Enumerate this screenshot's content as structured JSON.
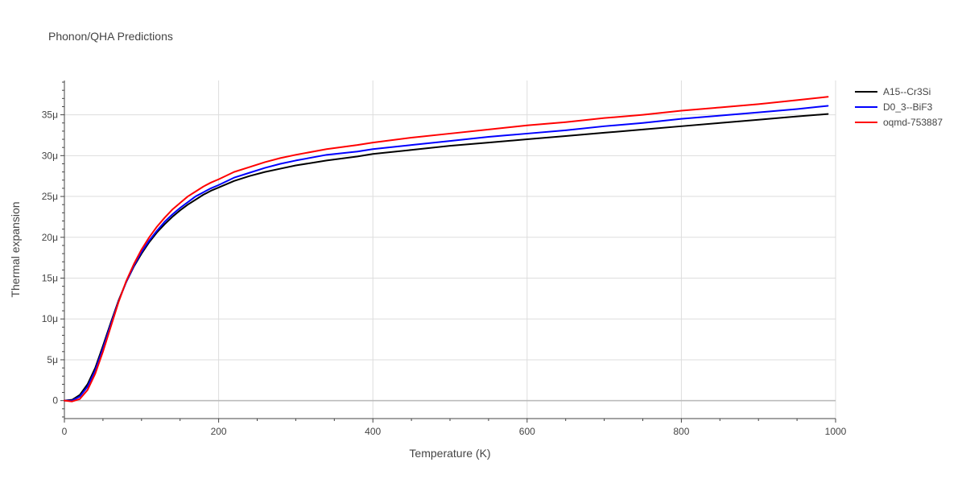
{
  "chart_data": {
    "type": "line",
    "title": "Phonon/QHA Predictions",
    "xlabel": "Temperature (K)",
    "ylabel": "Thermal expansion",
    "xlim": [
      0,
      1000
    ],
    "ylim": [
      -2.2,
      39.2
    ],
    "x_ticks": [
      0,
      200,
      400,
      600,
      800,
      1000
    ],
    "x_tick_labels": [
      "0",
      "200",
      "400",
      "600",
      "800",
      "1000"
    ],
    "y_ticks": [
      0,
      5,
      10,
      15,
      20,
      25,
      30,
      35
    ],
    "y_tick_labels": [
      "0",
      "5μ",
      "10μ",
      "15μ",
      "20μ",
      "25μ",
      "30μ",
      "35μ"
    ],
    "y_unit": "μ (×1e-6)",
    "grid": true,
    "legend_position": "top-right",
    "series": [
      {
        "name": "A15--Cr3Si",
        "color": "#000000",
        "x": [
          0,
          10,
          20,
          30,
          40,
          50,
          60,
          70,
          80,
          90,
          100,
          110,
          120,
          130,
          140,
          150,
          160,
          170,
          180,
          190,
          200,
          220,
          240,
          260,
          280,
          300,
          340,
          380,
          400,
          450,
          500,
          550,
          600,
          650,
          700,
          750,
          800,
          850,
          900,
          950,
          990
        ],
        "y": [
          0,
          0.1,
          0.7,
          2.0,
          4.0,
          6.7,
          9.5,
          12.2,
          14.5,
          16.4,
          18.0,
          19.4,
          20.6,
          21.6,
          22.5,
          23.3,
          24.0,
          24.6,
          25.2,
          25.7,
          26.1,
          26.9,
          27.5,
          28.0,
          28.4,
          28.8,
          29.4,
          29.9,
          30.2,
          30.7,
          31.2,
          31.6,
          32.0,
          32.4,
          32.8,
          33.2,
          33.6,
          34.0,
          34.4,
          34.8,
          35.1
        ]
      },
      {
        "name": "D0_3--BiF3",
        "color": "#0000ff",
        "x": [
          0,
          10,
          20,
          30,
          40,
          50,
          60,
          70,
          80,
          90,
          100,
          110,
          120,
          130,
          140,
          150,
          160,
          170,
          180,
          190,
          200,
          220,
          240,
          260,
          280,
          300,
          340,
          380,
          400,
          450,
          500,
          550,
          600,
          650,
          700,
          750,
          800,
          850,
          900,
          950,
          990
        ],
        "y": [
          0,
          0.0,
          0.5,
          1.7,
          3.7,
          6.4,
          9.3,
          12.1,
          14.5,
          16.5,
          18.2,
          19.6,
          20.8,
          21.9,
          22.8,
          23.6,
          24.3,
          25.0,
          25.5,
          26.0,
          26.4,
          27.3,
          27.9,
          28.5,
          29.0,
          29.4,
          30.1,
          30.5,
          30.8,
          31.3,
          31.8,
          32.3,
          32.7,
          33.1,
          33.6,
          34.0,
          34.5,
          34.9,
          35.3,
          35.7,
          36.1
        ]
      },
      {
        "name": "oqmd-753887",
        "color": "#ff0000",
        "x": [
          0,
          10,
          20,
          30,
          40,
          50,
          60,
          70,
          80,
          90,
          100,
          110,
          120,
          130,
          140,
          150,
          160,
          170,
          180,
          190,
          200,
          220,
          240,
          260,
          280,
          300,
          340,
          380,
          400,
          450,
          500,
          550,
          600,
          650,
          700,
          750,
          800,
          850,
          900,
          950,
          990
        ],
        "y": [
          0,
          -0.1,
          0.2,
          1.3,
          3.3,
          6.0,
          9.0,
          12.0,
          14.6,
          16.7,
          18.5,
          20.0,
          21.3,
          22.4,
          23.4,
          24.2,
          25.0,
          25.6,
          26.2,
          26.7,
          27.1,
          28.0,
          28.6,
          29.2,
          29.7,
          30.1,
          30.8,
          31.3,
          31.6,
          32.2,
          32.7,
          33.2,
          33.7,
          34.1,
          34.6,
          35.0,
          35.5,
          35.9,
          36.3,
          36.8,
          37.2
        ]
      }
    ]
  }
}
